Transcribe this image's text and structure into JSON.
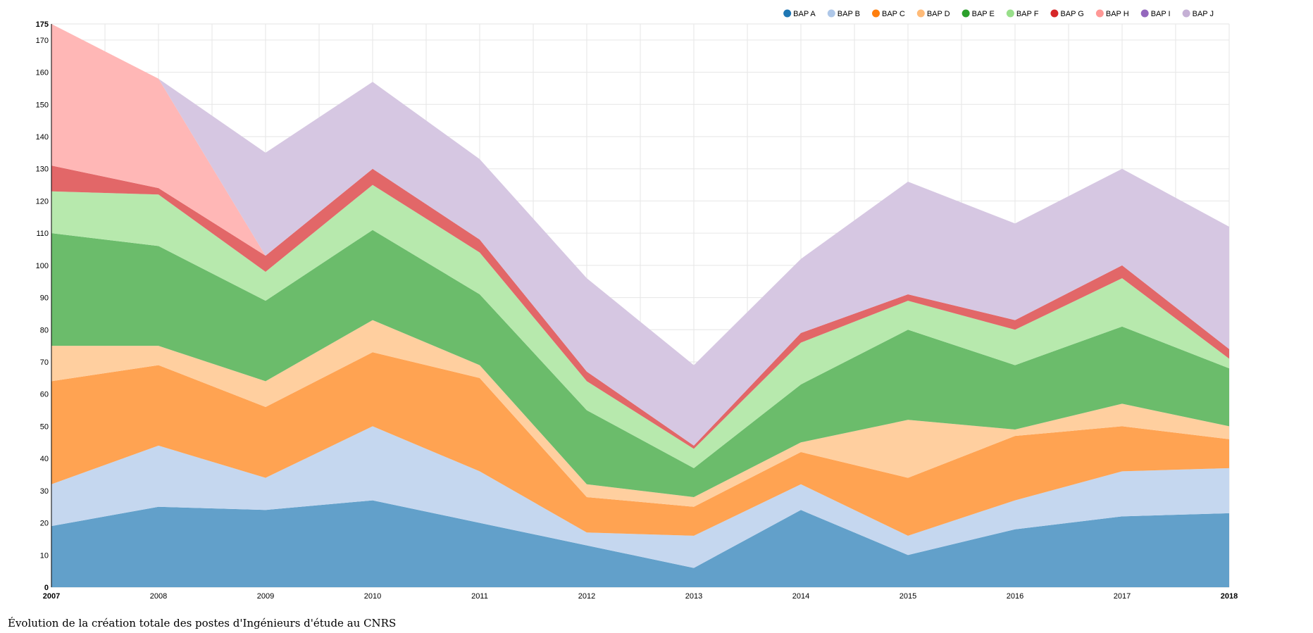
{
  "caption": "Évolution de la création totale des postes d'Ingénieurs d'étude au CNRS",
  "chart_data": {
    "type": "area",
    "stacked": true,
    "x": [
      2007,
      2008,
      2009,
      2010,
      2011,
      2012,
      2013,
      2014,
      2015,
      2016,
      2017,
      2018
    ],
    "ylim": [
      0,
      175
    ],
    "yticks": [
      0,
      10,
      20,
      30,
      40,
      50,
      60,
      70,
      80,
      90,
      100,
      110,
      120,
      130,
      140,
      150,
      160,
      170,
      175
    ],
    "grid": true,
    "legend_position": "top-right",
    "series": [
      {
        "name": "BAP A",
        "color": "#1f77b4",
        "fill": "#62a0ca",
        "values": [
          19,
          25,
          24,
          27,
          20,
          13,
          6,
          24,
          10,
          18,
          22,
          23
        ]
      },
      {
        "name": "BAP B",
        "color": "#aec7e8",
        "fill": "#c5d7ef",
        "values": [
          13,
          19,
          10,
          23,
          16,
          4,
          10,
          8,
          6,
          9,
          14,
          14
        ]
      },
      {
        "name": "BAP C",
        "color": "#ff7f0e",
        "fill": "#ffa352",
        "values": [
          32,
          25,
          22,
          23,
          29,
          11,
          9,
          10,
          18,
          20,
          14,
          9
        ]
      },
      {
        "name": "BAP D",
        "color": "#ffbb78",
        "fill": "#ffcf9f",
        "values": [
          11,
          6,
          8,
          10,
          4,
          4,
          3,
          3,
          18,
          2,
          7,
          4
        ]
      },
      {
        "name": "BAP E",
        "color": "#2ca02c",
        "fill": "#6bbc6b",
        "values": [
          35,
          31,
          25,
          28,
          22,
          23,
          9,
          18,
          28,
          20,
          24,
          18
        ]
      },
      {
        "name": "BAP F",
        "color": "#98df8a",
        "fill": "#b7e9ad",
        "values": [
          13,
          16,
          9,
          14,
          13,
          9,
          6,
          13,
          9,
          11,
          15,
          3
        ]
      },
      {
        "name": "BAP G",
        "color": "#d62728",
        "fill": "#e26768",
        "values": [
          8,
          2,
          5,
          5,
          4,
          3,
          1,
          3,
          2,
          3,
          4,
          3
        ]
      },
      {
        "name": "BAP H",
        "color": "#ff9896",
        "fill": "#ffb7b6",
        "values": [
          44,
          34,
          0,
          0,
          0,
          0,
          0,
          0,
          0,
          0,
          0,
          0
        ]
      },
      {
        "name": "BAP I",
        "color": "#9467bd",
        "fill": "#b495d1",
        "values": [
          0,
          0,
          0,
          0,
          0,
          0,
          0,
          0,
          0,
          0,
          0,
          0
        ]
      },
      {
        "name": "BAP J",
        "color": "#c5b0d5",
        "fill": "#d6c7e2",
        "values": [
          0,
          0,
          32,
          27,
          25,
          29,
          25,
          23,
          35,
          30,
          30,
          38
        ]
      }
    ]
  }
}
